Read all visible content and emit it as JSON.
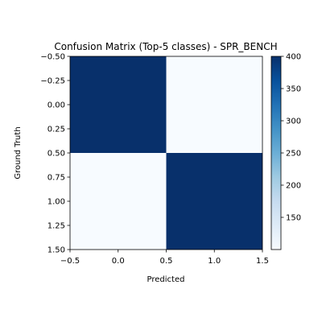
{
  "chart_data": {
    "type": "heatmap",
    "title": "Confusion Matrix (Top-5 classes) - SPR_BENCH",
    "xlabel": "Predicted",
    "ylabel": "Ground Truth",
    "x_categories": [
      0,
      1
    ],
    "y_categories": [
      0,
      1
    ],
    "values": [
      [
        400,
        100
      ],
      [
        100,
        400
      ]
    ],
    "xlim": [
      -0.5,
      1.5
    ],
    "ylim": [
      1.5,
      -0.5
    ],
    "x_ticks": [
      "−0.5",
      "0.0",
      "0.5",
      "1.0",
      "1.5"
    ],
    "x_tick_values": [
      -0.5,
      0.0,
      0.5,
      1.0,
      1.5
    ],
    "y_ticks": [
      "−0.50",
      "−0.25",
      "0.00",
      "0.25",
      "0.50",
      "0.75",
      "1.00",
      "1.25",
      "1.50"
    ],
    "y_tick_values": [
      -0.5,
      -0.25,
      0.0,
      0.25,
      0.5,
      0.75,
      1.0,
      1.25,
      1.5
    ],
    "colorbar": {
      "range": [
        100,
        400
      ],
      "ticks": [
        "150",
        "200",
        "250",
        "300",
        "350",
        "400"
      ],
      "tick_values": [
        150,
        200,
        250,
        300,
        350,
        400
      ],
      "colormap": "Blues",
      "low_color": "#f7fbff",
      "high_color": "#08306b"
    },
    "grid": false,
    "legend": "none"
  }
}
